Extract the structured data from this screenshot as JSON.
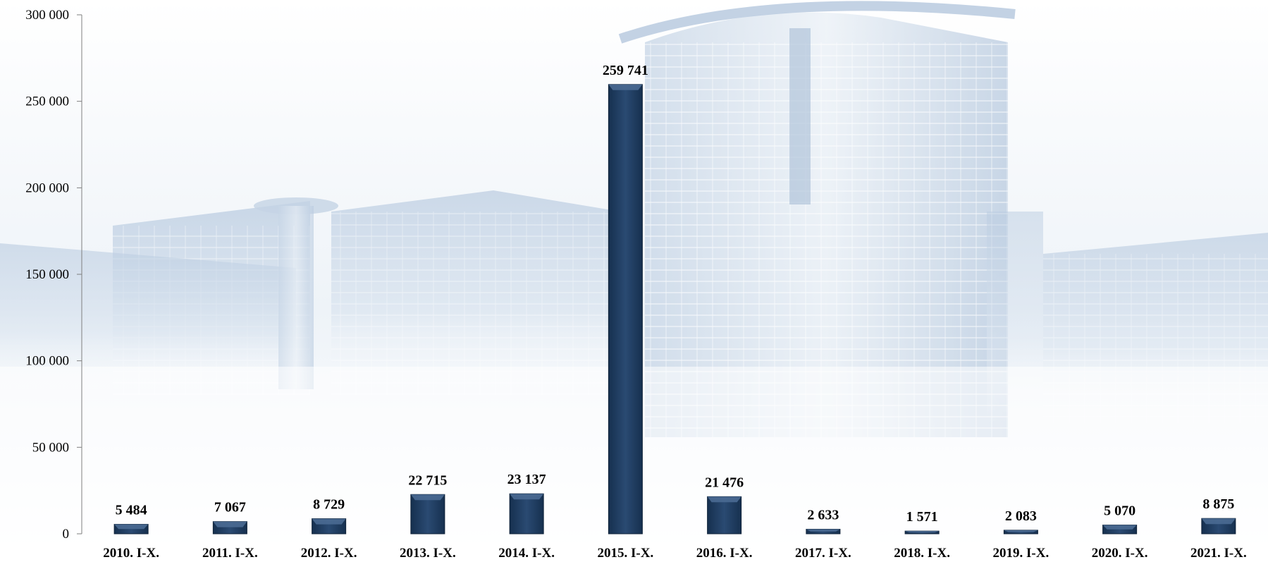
{
  "chart_data": {
    "type": "bar",
    "categories": [
      "2010. I-X.",
      "2011. I-X.",
      "2012. I-X.",
      "2013. I-X.",
      "2014. I-X.",
      "2015. I-X.",
      "2016. I-X.",
      "2017. I-X.",
      "2018. I-X.",
      "2019. I-X.",
      "2020. I-X.",
      "2021. I-X."
    ],
    "values": [
      5484,
      7067,
      8729,
      22715,
      23137,
      259741,
      21476,
      2633,
      1571,
      2083,
      5070,
      8875
    ],
    "value_labels": [
      "5 484",
      "7 067",
      "8 729",
      "22 715",
      "23 137",
      "259 741",
      "21 476",
      "2 633",
      "1 571",
      "2 083",
      "5 070",
      "8 875"
    ],
    "title": "",
    "xlabel": "",
    "ylabel": "",
    "ylim": [
      0,
      300000
    ],
    "y_ticks": [
      0,
      50000,
      100000,
      150000,
      200000,
      250000,
      300000
    ],
    "y_tick_labels": [
      "0",
      "50 000",
      "100 000",
      "150 000",
      "200 000",
      "250 000",
      "300 000"
    ],
    "grid": false,
    "legend": "none",
    "bar_color": "#1f3a5f",
    "bar_highlight_color": "#4a6a92",
    "background_image": "faded-building-photo"
  }
}
